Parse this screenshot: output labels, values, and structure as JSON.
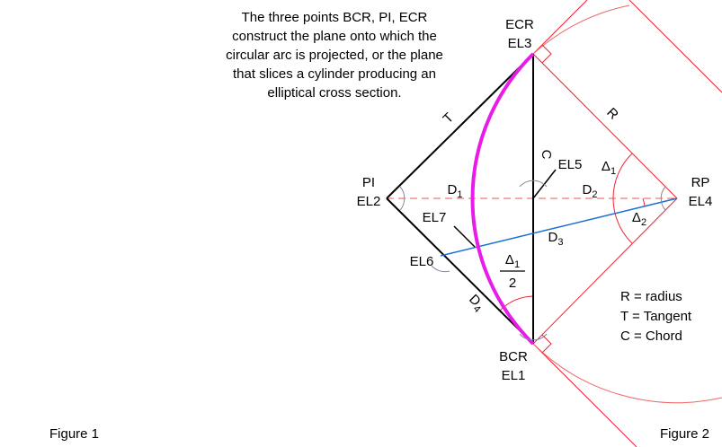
{
  "description": [
    "The three points BCR, PI, ECR",
    "construct the plane onto which the",
    "circular arc is projected, or the plane",
    "that slices a cylinder producing an",
    "elliptical cross section."
  ],
  "points": {
    "ecr": [
      "ECR",
      "EL3"
    ],
    "pi": [
      "PI",
      "EL2"
    ],
    "rp": [
      "RP",
      "EL4"
    ],
    "bcr": [
      "BCR",
      "EL1"
    ],
    "el5": "EL5",
    "el6": "EL6",
    "el7": "EL7"
  },
  "segments": {
    "tangent": "T",
    "chord": "C",
    "radius": "R",
    "d1": {
      "text": "D",
      "sub": "1"
    },
    "d2": {
      "text": "D",
      "sub": "2"
    },
    "d3": {
      "text": "D",
      "sub": "3"
    },
    "d4": {
      "text": "D",
      "sub": "4"
    }
  },
  "angles": {
    "delta1": {
      "text": "Δ",
      "sub": "1"
    },
    "delta2": {
      "text": "Δ",
      "sub": "2"
    },
    "half": {
      "text": "Δ",
      "sub": "1",
      "denominator": "2"
    }
  },
  "legend": [
    "R = radius",
    "T = Tangent",
    "C = Chord"
  ],
  "figures": [
    "Figure 1",
    "Figure 2"
  ]
}
